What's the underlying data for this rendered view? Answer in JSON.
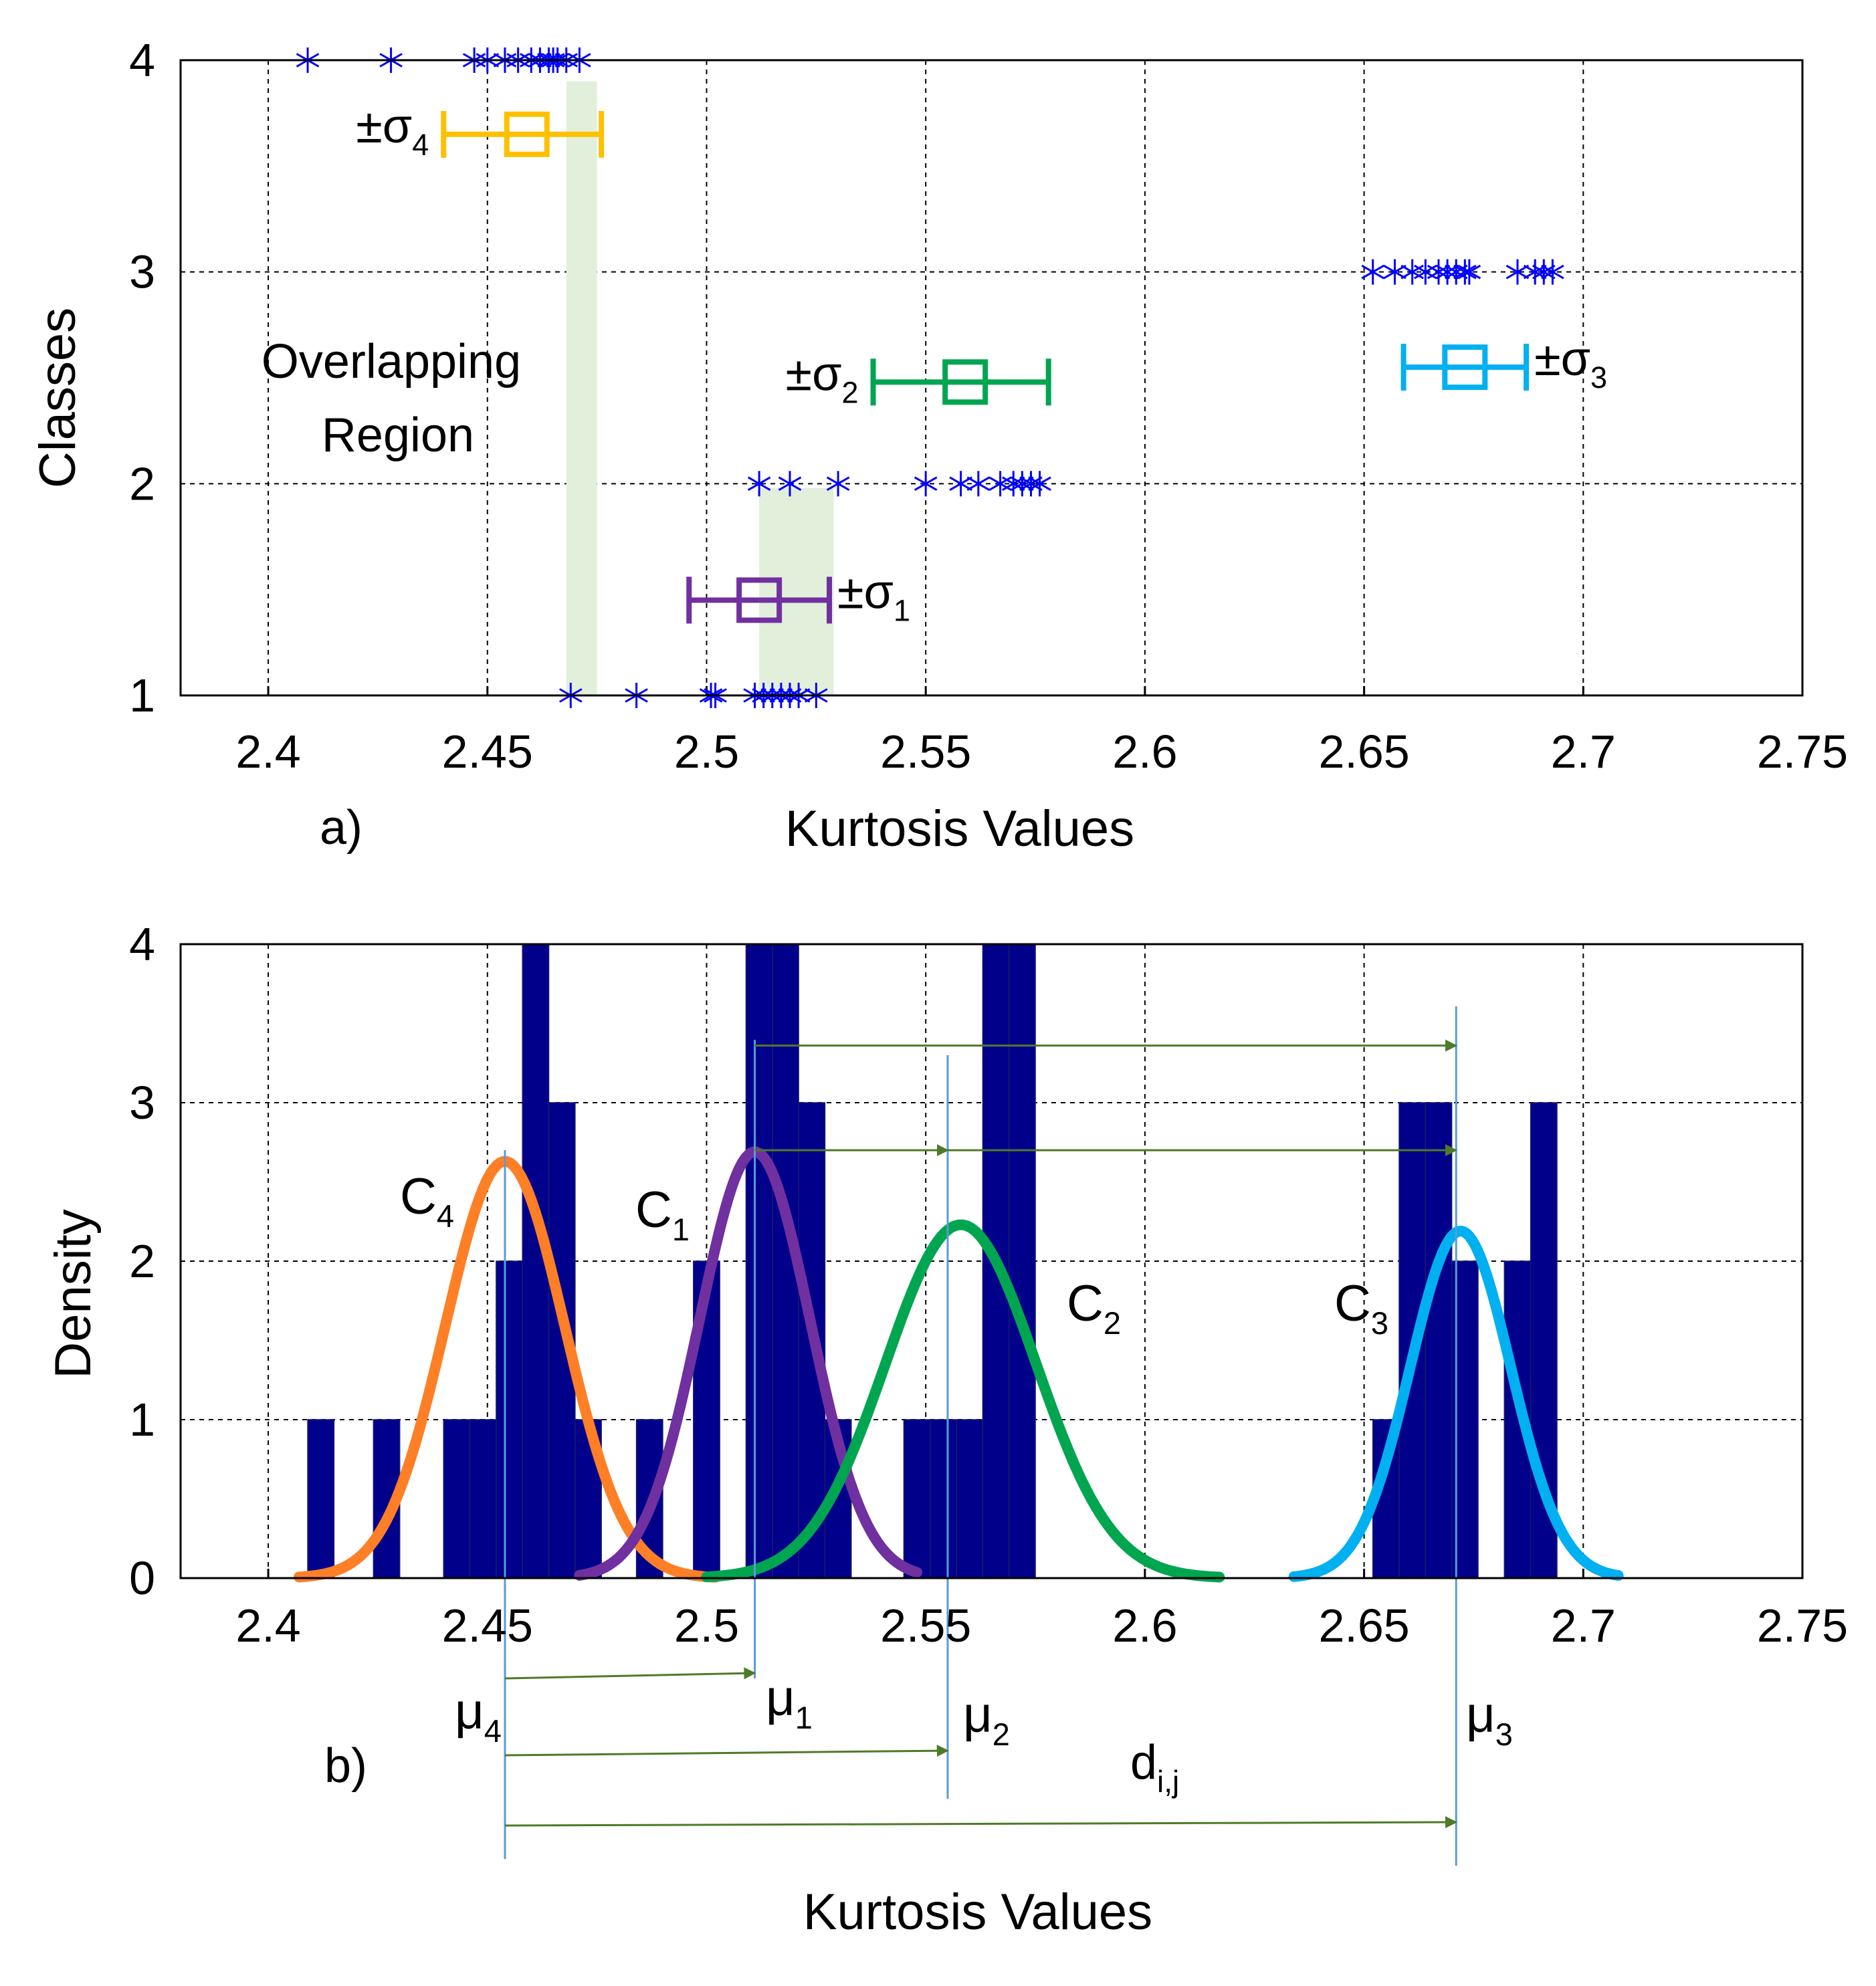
{
  "chart_data": [
    {
      "type": "scatter",
      "panel_label": "a)",
      "xlabel": "Kurtosis Values",
      "ylabel": "Classes",
      "xlim": [
        2.38,
        2.75
      ],
      "ylim": [
        1,
        4
      ],
      "xticks": [
        "2.4",
        "2.45",
        "2.5",
        "2.55",
        "2.6",
        "2.65",
        "2.7",
        "2.75"
      ],
      "yticks": [
        "1",
        "2",
        "3",
        "4"
      ],
      "grid": true,
      "series": [
        {
          "name": "Class 1",
          "y": 1,
          "x": [
            2.469,
            2.484,
            2.501,
            2.502,
            2.511,
            2.513,
            2.515,
            2.517,
            2.519,
            2.521,
            2.525
          ]
        },
        {
          "name": "Class 2",
          "y": 2,
          "x": [
            2.512,
            2.519,
            2.53,
            2.55,
            2.558,
            2.562,
            2.567,
            2.57,
            2.572,
            2.574,
            2.576
          ]
        },
        {
          "name": "Class 3",
          "y": 3,
          "x": [
            2.652,
            2.657,
            2.661,
            2.664,
            2.667,
            2.669,
            2.671,
            2.673,
            2.674,
            2.685,
            2.689,
            2.691,
            2.693
          ]
        },
        {
          "name": "Class 4",
          "y": 4,
          "x": [
            2.409,
            2.428,
            2.447,
            2.45,
            2.454,
            2.457,
            2.46,
            2.462,
            2.464,
            2.465,
            2.466,
            2.468,
            2.471
          ]
        }
      ],
      "error_bars": [
        {
          "label": "±σ",
          "sub": "1",
          "y": 1.45,
          "mean": 2.512,
          "min": 2.496,
          "max": 2.528,
          "color": "#7030a0",
          "label_pos": "right"
        },
        {
          "label": "±σ",
          "sub": "2",
          "y": 2.48,
          "mean": 2.559,
          "min": 2.538,
          "max": 2.578,
          "color": "#00a550",
          "label_pos": "left"
        },
        {
          "label": "±σ",
          "sub": "3",
          "y": 2.55,
          "mean": 2.673,
          "min": 2.659,
          "max": 2.687,
          "color": "#00b0f0",
          "label_pos": "right"
        },
        {
          "label": "±σ",
          "sub": "4",
          "y": 3.65,
          "mean": 2.459,
          "min": 2.44,
          "max": 2.476,
          "color": "#ffc000",
          "label_pos": "left"
        }
      ],
      "overlap_regions": [
        {
          "x": [
            2.468,
            2.475
          ],
          "y": [
            1,
            3.9
          ]
        },
        {
          "x": [
            2.512,
            2.529
          ],
          "y": [
            1,
            1.98
          ]
        }
      ],
      "annotations": [
        "Overlapping",
        "Region"
      ],
      "marker_color": "#0000ff"
    },
    {
      "type": "bar",
      "panel_label": "b)",
      "xlabel": "Kurtosis Values",
      "ylabel": "Density",
      "xlim": [
        2.38,
        2.75
      ],
      "ylim": [
        0,
        4
      ],
      "xticks": [
        "2.4",
        "2.45",
        "2.5",
        "2.55",
        "2.6",
        "2.65",
        "2.7",
        "2.75"
      ],
      "yticks": [
        "0",
        "1",
        "2",
        "3",
        "4"
      ],
      "grid": true,
      "bar_color": "#00008b",
      "bin_width": 0.006,
      "bins_start": [
        2.409,
        2.424,
        2.44,
        2.446,
        2.452,
        2.458,
        2.464,
        2.47,
        2.484,
        2.497,
        2.509,
        2.515,
        2.521,
        2.527,
        2.545,
        2.551,
        2.557,
        2.563,
        2.569,
        2.652,
        2.658,
        2.664,
        2.67,
        2.682,
        2.688
      ],
      "bins_value": [
        1,
        1,
        1,
        1,
        2,
        4,
        3,
        1,
        1,
        2,
        4,
        4,
        3,
        1,
        1,
        1,
        1,
        4,
        4,
        1,
        3,
        3,
        2,
        2,
        3
      ],
      "curves": [
        {
          "name": "C",
          "sub": "4",
          "mu": 2.454,
          "sigma": 0.0136,
          "peak": 2.63,
          "range": [
            2.407,
            2.502
          ],
          "color": "#ff7f27"
        },
        {
          "name": "C",
          "sub": "1",
          "mu": 2.511,
          "sigma": 0.0126,
          "peak": 2.69,
          "range": [
            2.471,
            2.548
          ],
          "color": "#7030a0"
        },
        {
          "name": "C",
          "sub": "2",
          "mu": 2.558,
          "sigma": 0.0172,
          "peak": 2.23,
          "range": [
            2.5,
            2.617
          ],
          "color": "#00a550"
        },
        {
          "name": "C",
          "sub": "3",
          "mu": 2.672,
          "sigma": 0.0115,
          "peak": 2.19,
          "range": [
            2.634,
            2.708
          ],
          "color": "#00b0f0"
        }
      ],
      "means": [
        {
          "name": "μ",
          "sub": "4",
          "value": 2.454
        },
        {
          "name": "μ",
          "sub": "1",
          "value": 2.511
        },
        {
          "name": "μ",
          "sub": "2",
          "value": 2.555
        },
        {
          "name": "μ",
          "sub": "3",
          "value": 2.671
        }
      ],
      "distance_arrows_top": [
        {
          "from": 2.511,
          "to": 2.671,
          "y": 3.36
        },
        {
          "from": 2.511,
          "to": 2.555,
          "y": 2.7
        },
        {
          "from": 2.555,
          "to": 2.671,
          "y": 2.7
        }
      ],
      "distance_arrows_bottom": [
        {
          "from": 2.454,
          "to": 2.511
        },
        {
          "from": 2.454,
          "to": 2.555
        },
        {
          "from": 2.454,
          "to": 2.671
        }
      ],
      "distance_label": {
        "name": "d",
        "sub": "i,j"
      },
      "arrow_color": "#4f7a28",
      "mean_line_color": "#5b9bd5"
    }
  ]
}
